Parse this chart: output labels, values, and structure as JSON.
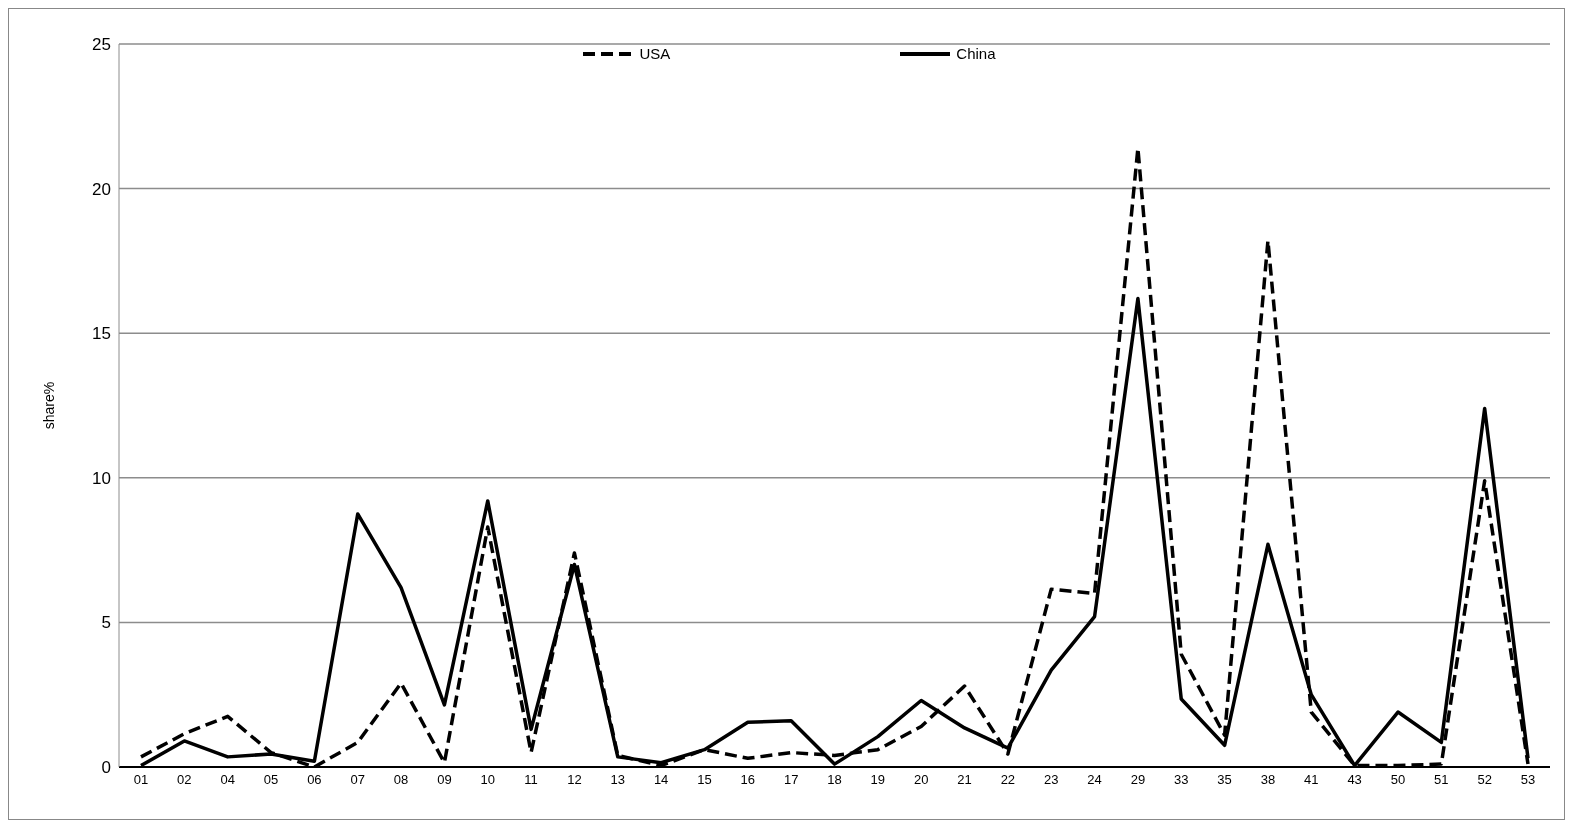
{
  "chart_data": {
    "type": "line",
    "ylabel": "share%",
    "categories": [
      "01",
      "02",
      "04",
      "05",
      "06",
      "07",
      "08",
      "09",
      "10",
      "11",
      "12",
      "13",
      "14",
      "15",
      "16",
      "17",
      "18",
      "19",
      "20",
      "21",
      "22",
      "23",
      "24",
      "29",
      "33",
      "35",
      "38",
      "41",
      "43",
      "50",
      "51",
      "52",
      "53"
    ],
    "series": [
      {
        "name": "USA",
        "color": "#000000",
        "line_style": "dashed",
        "values": [
          0.35,
          1.15,
          1.75,
          0.5,
          0.0,
          0.85,
          2.9,
          0.15,
          8.3,
          0.5,
          7.4,
          0.4,
          0.05,
          0.6,
          0.3,
          0.5,
          0.4,
          0.6,
          1.4,
          2.8,
          0.45,
          6.15,
          6.0,
          21.4,
          3.9,
          1.1,
          18.2,
          1.9,
          0.05,
          0.05,
          0.1,
          9.9,
          0.1
        ]
      },
      {
        "name": "China",
        "color": "#000000",
        "line_style": "solid",
        "values": [
          0.05,
          0.9,
          0.35,
          0.45,
          0.2,
          8.75,
          6.2,
          2.15,
          9.2,
          1.3,
          7.0,
          0.35,
          0.15,
          0.6,
          1.55,
          1.6,
          0.1,
          1.05,
          2.3,
          1.35,
          0.65,
          3.35,
          5.2,
          16.2,
          2.35,
          0.75,
          7.7,
          2.5,
          0.05,
          1.9,
          0.85,
          12.4,
          0.3
        ]
      }
    ],
    "ylim": [
      0,
      25
    ],
    "yticks": [
      0,
      5,
      10,
      15,
      20,
      25
    ],
    "grid": "y",
    "legend": "top",
    "marker": "none"
  }
}
